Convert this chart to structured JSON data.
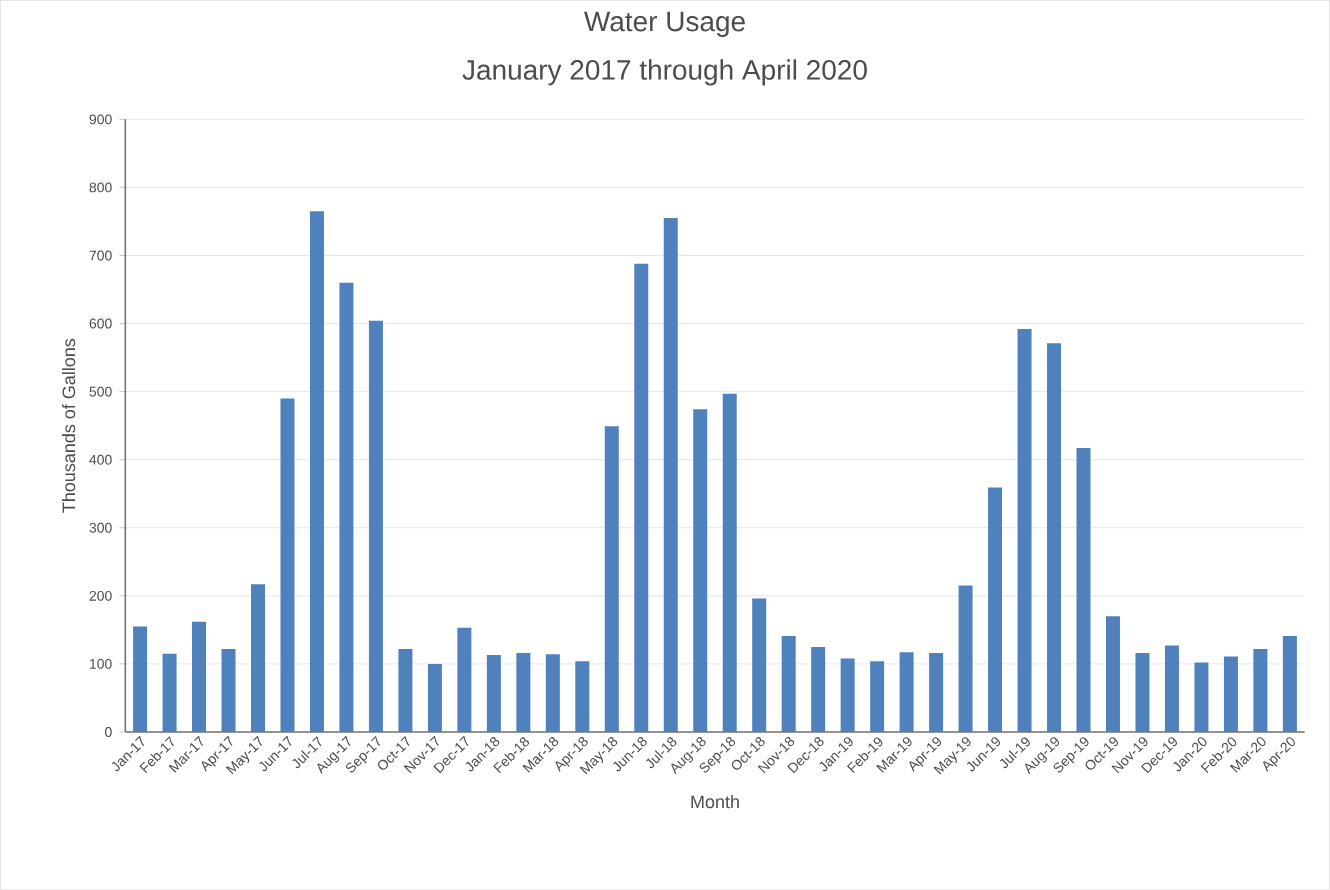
{
  "chart_data": {
    "type": "bar",
    "title": "Water Usage",
    "subtitle": "January 2017 through April 2020",
    "xlabel": "Month",
    "ylabel": "Thousands of Gallons",
    "categories": [
      "Jan-17",
      "Feb-17",
      "Mar-17",
      "Apr-17",
      "May-17",
      "Jun-17",
      "Jul-17",
      "Aug-17",
      "Sep-17",
      "Oct-17",
      "Nov-17",
      "Dec-17",
      "Jan-18",
      "Feb-18",
      "Mar-18",
      "Apr-18",
      "May-18",
      "Jun-18",
      "Jul-18",
      "Aug-18",
      "Sep-18",
      "Oct-18",
      "Nov-18",
      "Dec-18",
      "Jan-19",
      "Feb-19",
      "Mar-19",
      "Apr-19",
      "May-19",
      "Jun-19",
      "Jul-19",
      "Aug-19",
      "Sep-19",
      "Oct-19",
      "Nov-19",
      "Dec-19",
      "Jan-20",
      "Feb-20",
      "Mar-20",
      "Apr-20"
    ],
    "values": [
      155,
      115,
      162,
      122,
      217,
      490,
      765,
      660,
      604,
      122,
      100,
      153,
      113,
      116,
      114,
      104,
      449,
      688,
      755,
      474,
      497,
      196,
      141,
      125,
      108,
      104,
      117,
      116,
      215,
      359,
      592,
      571,
      417,
      170,
      116,
      127,
      102,
      111,
      122,
      141
    ],
    "color": "#4f81bd",
    "ylim": [
      0,
      900
    ],
    "yticks": [
      0,
      100,
      200,
      300,
      400,
      500,
      600,
      700,
      800,
      900
    ],
    "grid": "y"
  }
}
